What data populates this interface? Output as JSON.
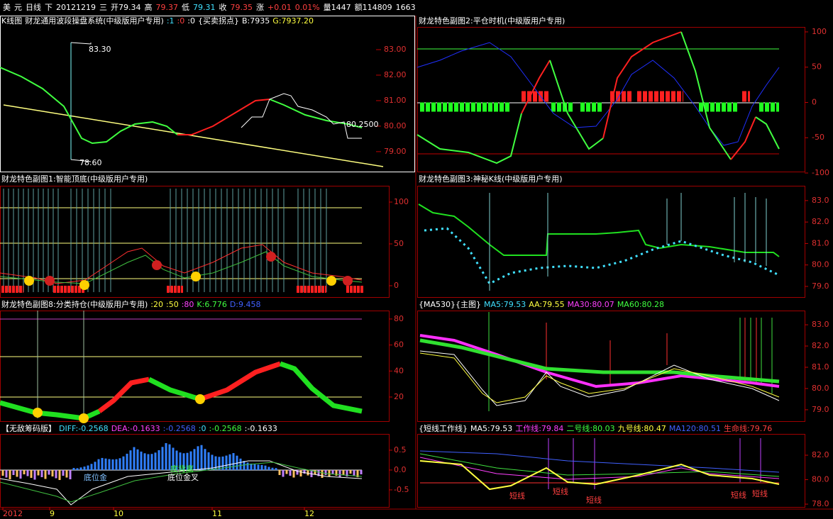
{
  "header": {
    "segments": [
      {
        "text": "美",
        "color": "#ffffff"
      },
      {
        "text": "元",
        "color": "#ffffff"
      },
      {
        "text": "日线",
        "color": "#ffffff"
      },
      {
        "text": "下",
        "color": "#ffffff"
      },
      {
        "text": "20121219",
        "color": "#ffffff"
      },
      {
        "text": "三",
        "color": "#ffffff"
      },
      {
        "text": "开79.34",
        "color": "#ffffff"
      },
      {
        "text": "高",
        "color": "#ffffff"
      },
      {
        "text": "79.37",
        "color": "#ff4040"
      },
      {
        "text": "低",
        "color": "#ffffff"
      },
      {
        "text": "79.31",
        "color": "#40e0ff"
      },
      {
        "text": "收",
        "color": "#ffffff"
      },
      {
        "text": "79.35",
        "color": "#ff4040"
      },
      {
        "text": "涨",
        "color": "#ffffff"
      },
      {
        "text": "+0.01",
        "color": "#ff4040"
      },
      {
        "text": "0.01%",
        "color": "#ff4040"
      },
      {
        "text": "量1447",
        "color": "#ffffff"
      },
      {
        "text": "额114809",
        "color": "#ffffff"
      },
      {
        "text": "1663",
        "color": "#ffffff"
      }
    ]
  },
  "panels": [
    {
      "title": [
        {
          "text": "K线图",
          "color": "#ffffff"
        },
        {
          "text": "财龙通用波段操盘系统(中级版用户专用)",
          "color": "#ffffff"
        },
        {
          "text": ":1",
          "color": "#40e0ff"
        },
        {
          "text": ":0",
          "color": "#ff4040"
        },
        {
          "text": ":0",
          "color": "#ffffff"
        },
        {
          "text": "{买卖拐点}",
          "color": "#ffffff"
        },
        {
          "text": "B:7935",
          "color": "#ffffff"
        },
        {
          "text": "G:7937.20",
          "color": "#ffff40"
        }
      ],
      "ylim": [
        78.19,
        83.89
      ],
      "yticks": [
        {
          "value": 83,
          "label": "83.00"
        },
        {
          "value": 82,
          "label": "82.00"
        },
        {
          "value": 81,
          "label": "81.00"
        },
        {
          "value": 80,
          "label": "80.00"
        },
        {
          "value": 79,
          "label": "79.00"
        }
      ],
      "annotations": [
        {
          "text": "83.30",
          "color": "#ffffff"
        },
        {
          "text": "78.60",
          "color": "#ffffff"
        },
        {
          "text": "80.2500",
          "color": "#ffffff"
        }
      ]
    },
    {
      "title": [
        {
          "text": "财龙特色副图2:平仓时机(中级版用户专用)",
          "color": "#ffffff"
        }
      ],
      "ylim": [
        -100,
        107
      ],
      "yticks": [
        100,
        50,
        0,
        -50,
        -100
      ],
      "annotations": []
    },
    {
      "title": [
        {
          "text": "财龙特色副图1:智能顶底(中级版用户专用)",
          "color": "#ffffff"
        }
      ],
      "ylim": [
        -14.4,
        119.5
      ],
      "yticks": [
        100,
        50,
        0
      ],
      "annotations": []
    },
    {
      "title": [
        {
          "text": "财龙特色副图3:神秘K线(中级版用户专用)",
          "color": "#ffffff"
        }
      ],
      "ylim": [
        78.47,
        83.69
      ],
      "yticks": [
        {
          "value": 83,
          "label": "83.0"
        },
        {
          "value": 82,
          "label": "82.0"
        },
        {
          "value": 81,
          "label": "81.0"
        },
        {
          "value": 80,
          "label": "80.0"
        },
        {
          "value": 79,
          "label": "79.0"
        }
      ],
      "annotations": []
    },
    {
      "title": [
        {
          "text": "财龙特色副图8:分类持仓(中级版用户专用)",
          "color": "#ffffff"
        },
        {
          "text": ":20",
          "color": "#ffff40"
        },
        {
          "text": ":50",
          "color": "#ffff40"
        },
        {
          "text": ":80",
          "color": "#ff40ff"
        },
        {
          "text": "K:6.776",
          "color": "#40ff40"
        },
        {
          "text": "D:9.458",
          "color": "#4060ff"
        }
      ],
      "ylim": [
        0.9,
        86.5
      ],
      "yticks": [
        80,
        60,
        40,
        20
      ],
      "annotations": []
    },
    {
      "title": [
        {
          "text": "{MA530}{主图}",
          "color": "#ffffff"
        },
        {
          "text": "MA5:79.53",
          "color": "#40e0ff"
        },
        {
          "text": "AA:79.55",
          "color": "#ffff40"
        },
        {
          "text": "MA30:80.07",
          "color": "#ff40ff"
        },
        {
          "text": "MA60:80.28",
          "color": "#40ff40"
        }
      ],
      "ylim": [
        78.43,
        83.67
      ],
      "yticks": [
        {
          "value": 83,
          "label": "83.0"
        },
        {
          "value": 82,
          "label": "82.0"
        },
        {
          "value": 81,
          "label": "81.0"
        },
        {
          "value": 80,
          "label": "80.0"
        },
        {
          "value": 79,
          "label": "79.0"
        }
      ],
      "annotations": []
    },
    {
      "title": [
        {
          "text": "【无敌筹码版】",
          "color": "#ffffff"
        },
        {
          "text": "DIFF:-0.2568",
          "color": "#40e0ff"
        },
        {
          "text": "DEA:-0.1633",
          "color": "#ff40ff"
        },
        {
          "text": ":-0.2568",
          "color": "#4060ff"
        },
        {
          "text": ":0",
          "color": "#40e0ff"
        },
        {
          "text": ":-0.2568",
          "color": "#40ff40"
        },
        {
          "text": ":-0.1633",
          "color": "#ffffff"
        }
      ],
      "ylim": [
        -0.93,
        0.91
      ],
      "yticks": [
        0.5,
        {
          "value": 0,
          "label": "0.0"
        },
        -0.5
      ],
      "annotations": [
        {
          "text": "底位金",
          "color": "#80c0ff"
        },
        {
          "text": "底背离",
          "color": "#40ff40"
        },
        {
          "text": "底位金叉",
          "color": "#ffffff"
        }
      ]
    },
    {
      "title": [
        {
          "text": "{短线工作线}",
          "color": "#ffffff"
        },
        {
          "text": "MA5:79.53",
          "color": "#ffffff"
        },
        {
          "text": "工作线:79.84",
          "color": "#ff40ff"
        },
        {
          "text": "二号线:80.03",
          "color": "#40ff40"
        },
        {
          "text": "九号线:80.47",
          "color": "#ffff40"
        },
        {
          "text": "MA120:80.51",
          "color": "#4060ff"
        },
        {
          "text": "生命线:79.76",
          "color": "#ff4040"
        }
      ],
      "ylim": [
        77.77,
        83.74
      ],
      "yticks": [
        {
          "value": 82,
          "label": "82.0"
        },
        {
          "value": 80,
          "label": "80.0"
        },
        {
          "value": 78,
          "label": "78.0"
        }
      ],
      "annotations": [
        {
          "text": "短线",
          "color": "#ff4040"
        },
        {
          "text": "短线",
          "color": "#ff4040"
        },
        {
          "text": "短线",
          "color": "#ff4040"
        },
        {
          "text": "短线",
          "color": "#ff4040"
        },
        {
          "text": "短线",
          "color": "#ff4040"
        }
      ]
    }
  ],
  "x_axis": {
    "labels": [
      {
        "text": "2012",
        "color": "#ff4040"
      },
      {
        "text": "9",
        "color": "#ffff40"
      },
      {
        "text": "10",
        "color": "#ffff40"
      },
      {
        "text": "11",
        "color": "#ffff40"
      },
      {
        "text": "12",
        "color": "#ffff40"
      }
    ]
  }
}
